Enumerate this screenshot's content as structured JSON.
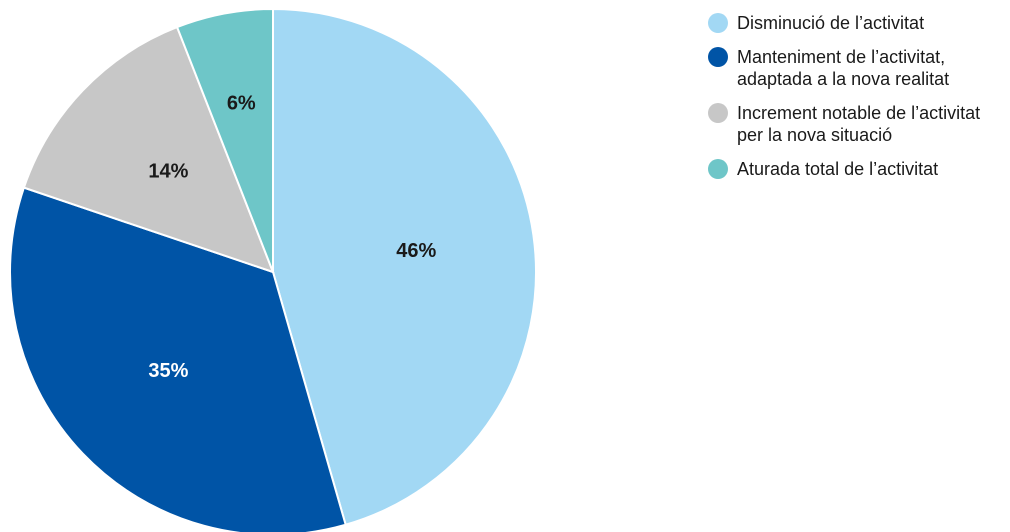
{
  "chart_data": {
    "type": "pie",
    "title": "",
    "slices": [
      {
        "label": "Disminució de l’activitat",
        "value": 46,
        "display": "46%",
        "color": "#A2D8F4",
        "label_color": "#1a1a1a"
      },
      {
        "label": "Manteniment de l’activitat, adaptada a la nova realitat",
        "value": 35,
        "display": "35%",
        "color": "#0054A6",
        "label_color": "#ffffff"
      },
      {
        "label": "Increment notable de l’activitat per la nova situació",
        "value": 14,
        "display": "14%",
        "color": "#C7C7C7",
        "label_color": "#1a1a1a"
      },
      {
        "label": "Aturada total de l’activitat",
        "value": 6,
        "display": "6%",
        "color": "#6EC6C8",
        "label_color": "#1a1a1a"
      }
    ],
    "start": "12 o'clock",
    "direction": "clockwise",
    "legend_position": "right"
  }
}
